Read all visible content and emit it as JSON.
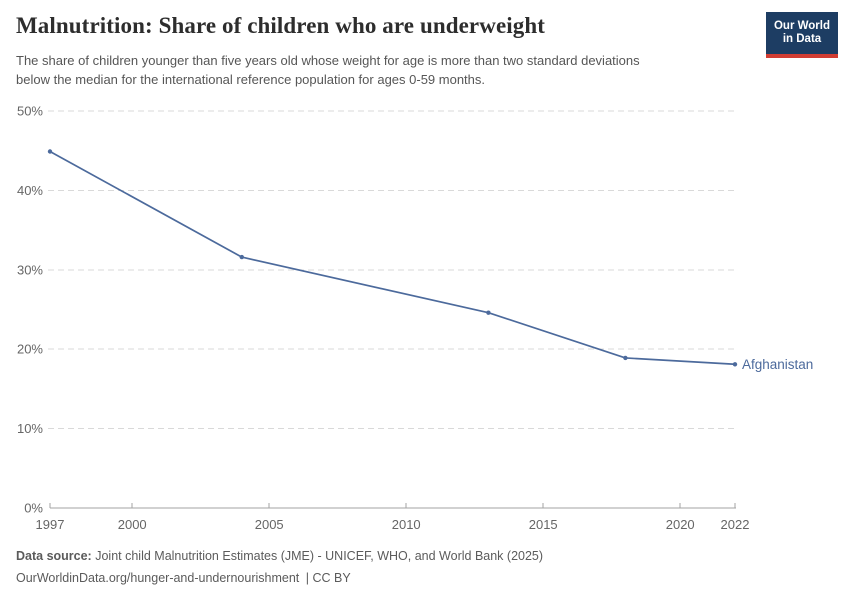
{
  "header": {
    "title": "Malnutrition: Share of children who are underweight",
    "subtitle_lines": [
      "The share of children younger than five years old whose weight for age is more than two standard deviations",
      "below the median for the international reference population for ages 0-59 months."
    ]
  },
  "logo": {
    "line1": "Our World",
    "line2": "in Data",
    "bg": "#1d3d63",
    "accent": "#d13d33"
  },
  "chart_data": {
    "type": "line",
    "title": "Malnutrition: Share of children who are underweight",
    "xlabel": "",
    "ylabel": "",
    "x_ticks": [
      1997,
      2000,
      2005,
      2010,
      2015,
      2020,
      2022
    ],
    "y_ticks": [
      0,
      10,
      20,
      30,
      40,
      50
    ],
    "y_tick_suffix": "%",
    "xlim": [
      1997,
      2022
    ],
    "ylim": [
      0,
      50
    ],
    "grid": "horizontal-dashed",
    "legend": "end-of-line-label",
    "series": [
      {
        "name": "Afghanistan",
        "color": "#4C6A9C",
        "points": [
          {
            "year": 1997,
            "value": 44.9
          },
          {
            "year": 2004,
            "value": 31.6
          },
          {
            "year": 2013,
            "value": 24.6
          },
          {
            "year": 2018,
            "value": 18.9
          },
          {
            "year": 2022,
            "value": 18.1
          }
        ]
      }
    ]
  },
  "footer": {
    "datasource_label": "Data source:",
    "datasource_text": "Joint child Malnutrition Estimates (JME) - UNICEF, WHO, and World Bank (2025)",
    "url_text": "OurWorldinData.org/hunger-and-undernourishment",
    "license_text": "| CC BY"
  }
}
